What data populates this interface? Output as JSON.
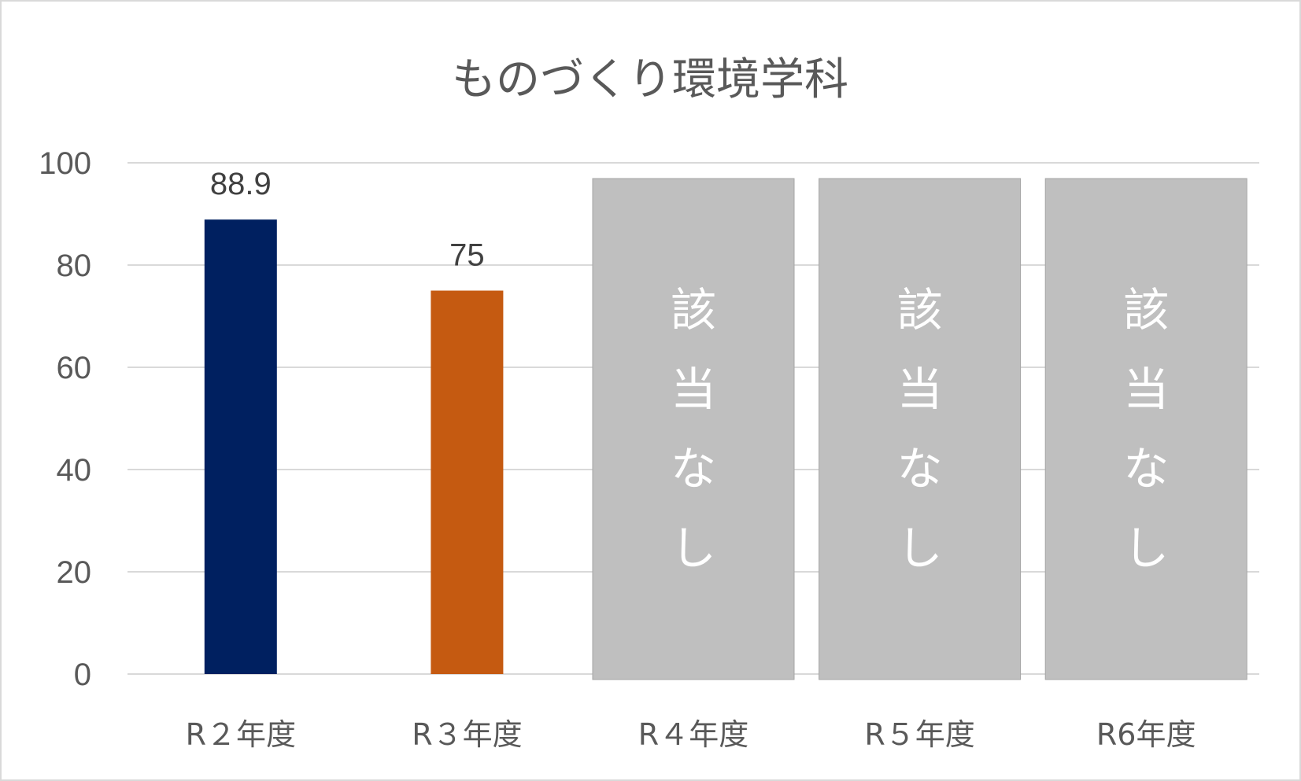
{
  "chart_data": {
    "type": "bar",
    "title": "ものづくり環境学科",
    "categories": [
      "R２年度",
      "R３年度",
      "R４年度",
      "R５年度",
      "R6年度"
    ],
    "values": [
      88.9,
      75,
      null,
      null,
      null
    ],
    "data_labels": [
      "88.9",
      "75",
      "",
      "",
      ""
    ],
    "bar_colors": [
      "#002060",
      "#c55a11",
      "",
      "",
      ""
    ],
    "ylim": [
      0,
      100
    ],
    "yticks": [
      "0",
      "20",
      "40",
      "60",
      "80",
      "100"
    ],
    "grid": true,
    "legend": "none",
    "not_applicable_label": "該当なし",
    "not_applicable_categories": [
      "R４年度",
      "R５年度",
      "R6年度"
    ],
    "not_applicable_color": "#bfbfbf"
  }
}
